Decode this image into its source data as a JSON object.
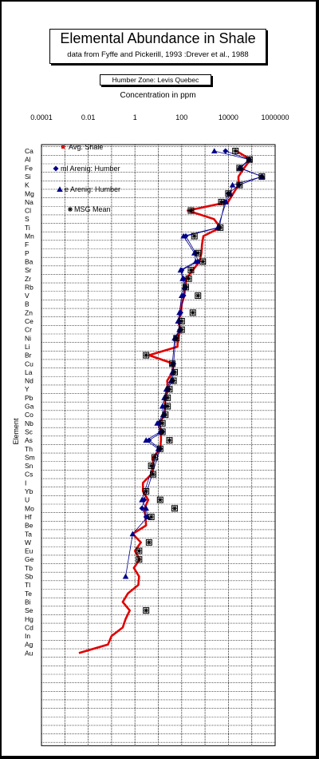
{
  "header": {
    "title": "Elemental  Abundance in Shale",
    "subtitle": "data from Fyffe and Pickerill, 1993 :Drever et al., 1988",
    "zone_label": "Humber Zone:  Levis Quebec"
  },
  "colors": {
    "avg_shale": "#e00000",
    "arenig": "#00008b",
    "msg": "#000000",
    "grid": "#000000"
  },
  "chart_data": {
    "type": "scatter",
    "title": "Elemental  Abundance in Shale",
    "subtitle": "data from Fyffe and Pickerill, 1993 :Drever et al., 1988",
    "xlabel": "Concentration in ppm",
    "ylabel": "Element",
    "xscale": "log",
    "xlim": [
      0.0001,
      1000000
    ],
    "x_tick_labels": [
      "0.0001",
      "0.01",
      "1",
      "100",
      "10000",
      "1000000"
    ],
    "x_ticks": [
      0.0001,
      0.01,
      1,
      100,
      10000,
      1000000
    ],
    "elements": [
      "Ca",
      "Al",
      "Fe",
      "Si",
      "K",
      "Mg",
      "Na",
      "Cl",
      "S",
      "Ti",
      "Mn",
      "F",
      "P",
      "Ba",
      "Sr",
      "Zr",
      "Rb",
      "V",
      "B",
      "Zn",
      "Ce",
      "Cr",
      "Ni",
      "Li",
      "Br",
      "Cu",
      "La",
      "Nd",
      "Y",
      "Pb",
      "Ga",
      "Co",
      "Nb",
      "Sc",
      "As",
      "Th",
      "Sm",
      "Sn",
      "Cs",
      "I",
      "Yb",
      "U",
      "Mo",
      "Hf",
      "Be",
      "Ta",
      "W",
      "Eu",
      "Ge",
      "Tb",
      "Sb",
      "Tl",
      "Te",
      "Bi",
      "Se",
      "Hg",
      "Cd",
      "In",
      "Ag",
      "Au"
    ],
    "legend_position": "top-left",
    "series": [
      {
        "name": "Avg. Shale",
        "style": "line",
        "values": {
          "Ca": 22000,
          "Al": 88000,
          "Fe": 47000,
          "Si": 27000,
          "K": 27000,
          "Mg": 16000,
          "Na": 9600,
          "Cl": 180,
          "S": 2400,
          "Ti": 4600,
          "Mn": 850,
          "F": 740,
          "P": 700,
          "Ba": 580,
          "Sr": 300,
          "Zr": 160,
          "Rb": 140,
          "V": 130,
          "B": 100,
          "Zn": 95,
          "Ce": 70,
          "Cr": 90,
          "Ni": 68,
          "Li": 66,
          "Br": 4,
          "Cu": 45,
          "La": 40,
          "Nd": 24,
          "Y": 26,
          "Pb": 20,
          "Ga": 19,
          "Co": 19,
          "Nb": 11,
          "Sc": 13,
          "As": 13,
          "Th": 12,
          "Sm": 6,
          "Sn": 6,
          "Cs": 5,
          "I": 2.2,
          "Yb": 2.2,
          "U": 3.7,
          "Mo": 2.6,
          "Hf": 2.8,
          "Be": 3,
          "Ta": 0.8,
          "W": 1.8,
          "Eu": 1,
          "Ge": 1.6,
          "Tb": 0.9,
          "Sb": 1.5,
          "Tl": 1.4,
          "Te": 0.5,
          "Bi": 0.3,
          "Se": 0.6,
          "Hg": 0.4,
          "Cd": 0.3,
          "In": 0.1,
          "Ag": 0.07,
          "Au": 0.004
        }
      },
      {
        "name": "ml Arenig: Humber",
        "style": "diamond",
        "values": {
          "Ca": 7500,
          "Al": 80000,
          "Fe": 33000,
          "Si": 270000,
          "K": 28000,
          "Mg": 10000,
          "Na": 7000,
          "Ti": 4000,
          "Mn": 150,
          "P": 400,
          "Ba": 500,
          "Sr": 100,
          "Zr": 120,
          "Rb": 150,
          "V": 120,
          "Zn": 90,
          "Ce": 80,
          "Cr": 85,
          "Ni": 55,
          "Cu": 45,
          "La": 45,
          "Nd": 40,
          "Y": 25,
          "Pb": 20,
          "Ga": 20,
          "Co": 18,
          "Nb": 11,
          "Sc": 15,
          "As": 4,
          "Th": 12,
          "U": 2.5,
          "Mo": 2,
          "Hf": 3
        }
      },
      {
        "name": "e Arenig: Humber",
        "style": "triangle",
        "values": {
          "Ca": 2500,
          "Al": 77000,
          "Fe": 30000,
          "Si": 280000,
          "K": 15000,
          "Mg": 12000,
          "Na": 8000,
          "Ti": 3500,
          "Mn": 120,
          "P": 350,
          "Ba": 400,
          "Sr": 90,
          "Zr": 110,
          "Rb": 130,
          "V": 100,
          "Zn": 80,
          "Ce": 70,
          "Cr": 80,
          "Ni": 50,
          "Cu": 40,
          "La": 40,
          "Nd": 35,
          "Y": 22,
          "Pb": 18,
          "Ga": 15,
          "Co": 16,
          "Nb": 9,
          "Sc": 12,
          "As": 3,
          "Th": 10,
          "U": 2,
          "Mo": 3,
          "Hf": 3.5,
          "Ta": 0.8,
          "Sb": 0.4
        }
      },
      {
        "name": "MSG Mean",
        "style": "star-box",
        "values": {
          "Ca": 20000,
          "Al": 80000,
          "Fe": 30000,
          "Si": 270000,
          "K": 30000,
          "Mg": 10000,
          "Na": 5000,
          "Cl": 250,
          "Ti": 4500,
          "Mn": 350,
          "P": 500,
          "Ba": 800,
          "Sr": 250,
          "Zr": 200,
          "Rb": 150,
          "V": 500,
          "Zn": 300,
          "Ce": 100,
          "Cr": 100,
          "Ni": 60,
          "Br": 3,
          "Cu": 40,
          "La": 50,
          "Nd": 45,
          "Y": 30,
          "Pb": 25,
          "Ga": 25,
          "Co": 20,
          "Nb": 15,
          "Sc": 15,
          "As": 30,
          "Th": 12,
          "Sm": 7,
          "Sn": 5,
          "Cs": 6,
          "Yb": 3,
          "U": 12,
          "Mo": 50,
          "Hf": 5,
          "W": 4,
          "Eu": 1.5,
          "Ge": 1.5,
          "Se": 3
        }
      }
    ]
  }
}
